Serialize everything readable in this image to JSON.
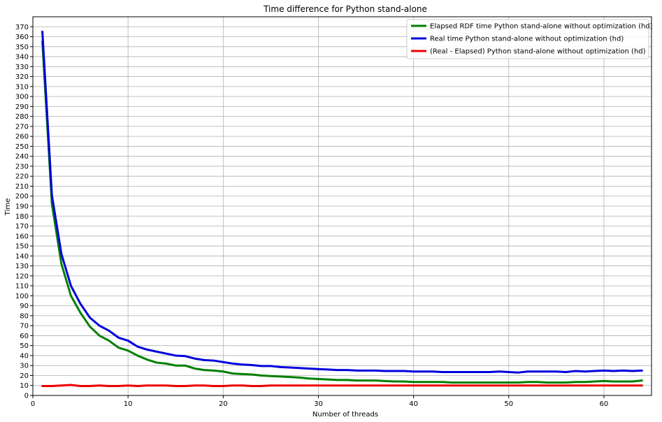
{
  "chart_data": {
    "type": "line",
    "title": "Time difference for Python stand-alone",
    "xlabel": "Number of threads",
    "ylabel": "Time",
    "xlim": [
      0,
      65
    ],
    "ylim": [
      0,
      380
    ],
    "xticks": [
      0,
      10,
      20,
      30,
      40,
      50,
      60
    ],
    "yticks": [
      0,
      10,
      20,
      30,
      40,
      50,
      60,
      70,
      80,
      90,
      100,
      110,
      120,
      130,
      140,
      150,
      160,
      170,
      180,
      190,
      200,
      210,
      220,
      230,
      240,
      250,
      260,
      270,
      280,
      290,
      300,
      310,
      320,
      330,
      340,
      350,
      360,
      370
    ],
    "grid": true,
    "legend_position": "top-right",
    "x": [
      1,
      2,
      3,
      4,
      5,
      6,
      7,
      8,
      9,
      10,
      11,
      12,
      13,
      14,
      15,
      16,
      17,
      18,
      19,
      20,
      21,
      22,
      23,
      24,
      25,
      26,
      27,
      28,
      29,
      30,
      31,
      32,
      33,
      34,
      35,
      36,
      37,
      38,
      39,
      40,
      41,
      42,
      43,
      44,
      45,
      46,
      47,
      48,
      49,
      50,
      51,
      52,
      53,
      54,
      55,
      56,
      57,
      58,
      59,
      60,
      61,
      62,
      63,
      64
    ],
    "series": [
      {
        "name": "Elapsed RDF time Python stand-alone without optimization (hd)",
        "color": "#008000",
        "values": [
          355,
          192,
          132,
          100,
          83,
          69,
          60,
          55,
          48,
          45,
          40,
          36,
          33,
          32,
          30,
          30,
          27,
          25.5,
          25,
          24,
          22,
          21.5,
          21,
          20,
          19.5,
          19,
          18.5,
          18,
          17,
          16.5,
          16,
          15.5,
          15.5,
          15,
          15,
          15,
          14.5,
          14,
          14,
          13.5,
          13.5,
          13.5,
          13.5,
          13,
          13,
          13,
          13,
          13,
          13,
          13,
          13,
          13.5,
          13.5,
          13,
          13,
          13,
          13.5,
          13.5,
          14,
          14.5,
          14,
          14,
          14,
          15
        ]
      },
      {
        "name": "Real time Python stand-alone without optimization (hd)",
        "color": "#0000dd",
        "values": [
          365,
          201,
          142,
          110,
          92,
          78,
          70,
          65,
          58,
          55,
          49,
          46,
          44,
          42,
          40,
          39.5,
          37,
          35.5,
          35,
          33.5,
          32,
          31,
          30.5,
          29.5,
          29.5,
          28.5,
          28,
          27.5,
          27,
          26.5,
          26,
          25.5,
          25.5,
          25,
          25,
          25,
          24.5,
          24.5,
          24.5,
          24,
          24,
          24,
          23.5,
          23.5,
          23.5,
          23.5,
          23.5,
          23.5,
          24,
          23.5,
          23,
          24,
          24,
          24,
          24,
          23.5,
          24.5,
          24,
          24.5,
          25,
          24.5,
          25,
          24.5,
          25
        ]
      },
      {
        "name": "(Real - Elapsed) Python stand-alone without optimization (hd)",
        "color": "#ee0000",
        "values": [
          9.5,
          9.5,
          10,
          10.5,
          9.5,
          9.5,
          10,
          9.5,
          9.5,
          10,
          9.5,
          10,
          10,
          10,
          9.5,
          9.5,
          10,
          10,
          9.5,
          9.5,
          10,
          10,
          9.5,
          9.5,
          10,
          10,
          10,
          10,
          10,
          10,
          10,
          10,
          10,
          10,
          10,
          10,
          10,
          10,
          10,
          10,
          10,
          10,
          10,
          10,
          10,
          10,
          10,
          10,
          10,
          10,
          10,
          10,
          10,
          10,
          10,
          10,
          10,
          10,
          10,
          10,
          10,
          10,
          10,
          10
        ]
      }
    ]
  }
}
